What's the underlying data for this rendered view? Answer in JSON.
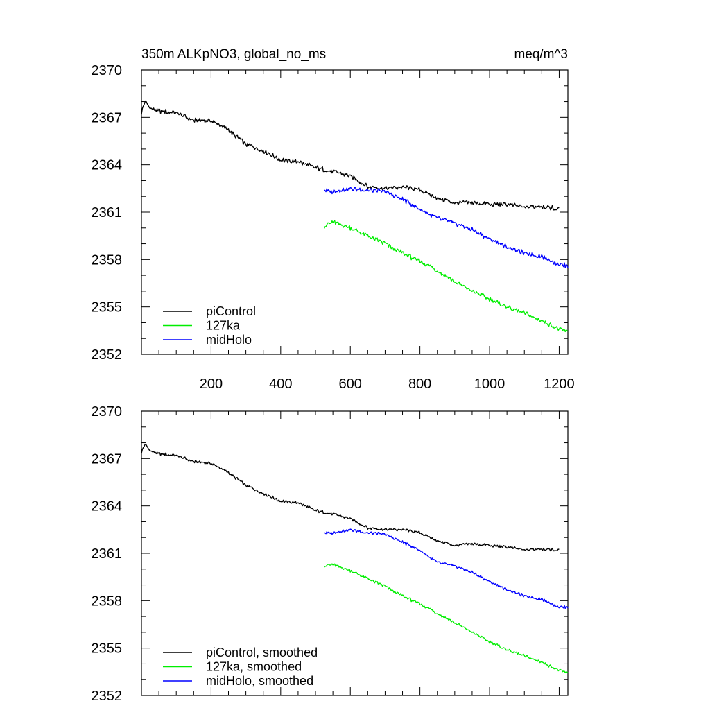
{
  "chart_data": [
    {
      "type": "line",
      "title_left": "350m ALKpNO3, global_no_ms",
      "title_right": "meq/m^3",
      "xlabel": "",
      "ylabel": "",
      "xlim": [
        0,
        1225
      ],
      "ylim": [
        2352,
        2370
      ],
      "xticks": [
        200,
        400,
        600,
        800,
        1000,
        1200
      ],
      "xtick_labels": [
        "200",
        "400",
        "600",
        "800",
        "1000",
        "1200"
      ],
      "yticks": [
        2352,
        2355,
        2358,
        2361,
        2364,
        2367,
        2370
      ],
      "ytick_labels": [
        "2352",
        "2355",
        "2358",
        "2361",
        "2364",
        "2367",
        "2370"
      ],
      "legend_position": "bottom-left",
      "series": [
        {
          "name": "piControl",
          "color": "#000000",
          "x": [
            0,
            10,
            25,
            50,
            100,
            150,
            200,
            250,
            300,
            350,
            400,
            450,
            500,
            550,
            600,
            650,
            700,
            750,
            800,
            850,
            900,
            950,
            1000,
            1050,
            1100,
            1150,
            1200
          ],
          "y": [
            2367.3,
            2368.0,
            2367.6,
            2367.4,
            2367.3,
            2366.8,
            2366.8,
            2366.2,
            2365.3,
            2364.9,
            2364.3,
            2364.2,
            2363.8,
            2363.6,
            2363.3,
            2362.6,
            2362.5,
            2362.6,
            2362.4,
            2361.9,
            2361.6,
            2361.6,
            2361.5,
            2361.5,
            2361.3,
            2361.4,
            2361.2
          ]
        },
        {
          "name": "127ka",
          "color": "#00ee00",
          "x": [
            525,
            550,
            600,
            650,
            700,
            750,
            800,
            850,
            900,
            950,
            1000,
            1050,
            1100,
            1150,
            1200,
            1225
          ],
          "y": [
            2360.1,
            2360.4,
            2360.0,
            2359.5,
            2359.0,
            2358.4,
            2357.9,
            2357.3,
            2356.6,
            2356.0,
            2355.5,
            2355.0,
            2354.6,
            2354.1,
            2353.6,
            2353.4
          ]
        },
        {
          "name": "midHolo",
          "color": "#0000ff",
          "x": [
            525,
            550,
            600,
            650,
            700,
            750,
            800,
            850,
            900,
            950,
            1000,
            1050,
            1100,
            1150,
            1200,
            1225
          ],
          "y": [
            2362.4,
            2362.3,
            2362.5,
            2362.4,
            2362.3,
            2361.8,
            2361.2,
            2360.6,
            2360.3,
            2359.9,
            2359.3,
            2358.8,
            2358.4,
            2358.2,
            2357.7,
            2357.6
          ]
        }
      ]
    },
    {
      "type": "line",
      "title_left": "",
      "title_right": "",
      "xlabel": "",
      "ylabel": "",
      "xlim": [
        0,
        1225
      ],
      "ylim": [
        2352,
        2370
      ],
      "xticks": [
        200,
        400,
        600,
        800,
        1000,
        1200
      ],
      "xtick_labels": [],
      "yticks": [
        2352,
        2355,
        2358,
        2361,
        2364,
        2367,
        2370
      ],
      "ytick_labels": [
        "2352",
        "2355",
        "2358",
        "2361",
        "2364",
        "2367",
        "2370"
      ],
      "legend_position": "bottom-left",
      "series": [
        {
          "name": "piControl, smoothed",
          "color": "#000000",
          "x": [
            0,
            10,
            25,
            50,
            100,
            150,
            200,
            250,
            300,
            350,
            400,
            450,
            500,
            550,
            600,
            650,
            700,
            750,
            800,
            850,
            900,
            950,
            1000,
            1050,
            1100,
            1150,
            1200
          ],
          "y": [
            2367.4,
            2367.9,
            2367.5,
            2367.3,
            2367.2,
            2366.8,
            2366.7,
            2366.1,
            2365.3,
            2364.8,
            2364.3,
            2364.2,
            2363.7,
            2363.5,
            2363.2,
            2362.6,
            2362.5,
            2362.5,
            2362.3,
            2361.8,
            2361.5,
            2361.6,
            2361.5,
            2361.4,
            2361.2,
            2361.3,
            2361.2
          ]
        },
        {
          "name": "127ka, smoothed",
          "color": "#00ee00",
          "x": [
            525,
            550,
            600,
            650,
            700,
            750,
            800,
            850,
            900,
            950,
            1000,
            1050,
            1100,
            1150,
            1200,
            1225
          ],
          "y": [
            2360.2,
            2360.3,
            2359.9,
            2359.4,
            2358.9,
            2358.3,
            2357.8,
            2357.2,
            2356.6,
            2356.0,
            2355.4,
            2354.9,
            2354.5,
            2354.1,
            2353.6,
            2353.4
          ]
        },
        {
          "name": "midHolo, smoothed",
          "color": "#0000ff",
          "x": [
            525,
            550,
            600,
            650,
            700,
            750,
            800,
            850,
            900,
            950,
            1000,
            1050,
            1100,
            1150,
            1200,
            1225
          ],
          "y": [
            2362.3,
            2362.3,
            2362.5,
            2362.3,
            2362.2,
            2361.7,
            2361.2,
            2360.4,
            2360.2,
            2359.8,
            2359.2,
            2358.7,
            2358.3,
            2358.1,
            2357.6,
            2357.6
          ]
        }
      ]
    }
  ]
}
